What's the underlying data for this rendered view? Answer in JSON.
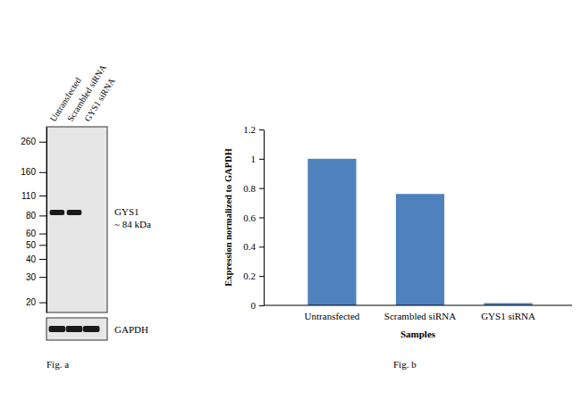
{
  "chart_data": [
    {
      "type": "blot",
      "caption": "Fig. a",
      "categories": [
        "Untransfected",
        "Scrambled siRNA",
        "GYS1 siRNA"
      ],
      "log": "y",
      "ylim": [
        17,
        330
      ],
      "yticks": [
        260,
        160,
        110,
        80,
        60,
        50,
        40,
        30,
        20
      ],
      "series": [
        {
          "name": "GYS1",
          "color": "#1a1a1a",
          "values": [
            84,
            84,
            null
          ]
        }
      ],
      "annotations": [
        "~ 84 kDa"
      ],
      "loading_control": "GAPDH"
    },
    {
      "type": "bar",
      "caption": "Fig. b",
      "categories": [
        "Untransfected",
        "Scrambled siRNA",
        "GYS1 siRNA"
      ],
      "values": [
        1,
        0.76,
        0.015
      ],
      "color": "#4f81bd",
      "xlabel": "Samples",
      "ylabel": "Expression normalized to GAPDH",
      "ylim": [
        0,
        1.2
      ],
      "yticks": [
        0,
        0.2,
        0.4,
        0.6,
        0.8,
        1,
        1.2
      ],
      "grid": false
    }
  ]
}
